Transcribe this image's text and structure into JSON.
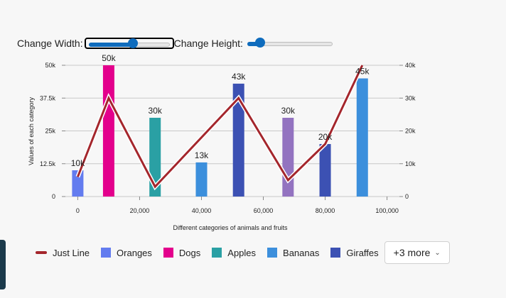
{
  "controls": {
    "width_label": "Change Width:",
    "height_label": "Change Height:",
    "width_slider_value": 0.55,
    "height_slider_value": 0.15
  },
  "chart_data": {
    "type": "bar",
    "xlabel": "Different categories of animals and fruits",
    "ylabel": "Values of each category",
    "x_ticks": [
      "0",
      "20,000",
      "40,000",
      "60,000",
      "80,000",
      "100,000"
    ],
    "x_range": [
      -4000,
      104000
    ],
    "y_ticks": [
      "0",
      "12.5k",
      "25k",
      "37.5k",
      "50k"
    ],
    "ylim": [
      0,
      50000
    ],
    "y2_ticks": [
      "0",
      "10k",
      "20k",
      "30k",
      "40k"
    ],
    "y2lim": [
      0,
      40000
    ],
    "grid": true,
    "bars": [
      {
        "name": "Oranges",
        "x": 0,
        "value": 10000,
        "label": "10k",
        "color": "#637cef"
      },
      {
        "name": "Dogs",
        "x": 10000,
        "value": 50000,
        "label": "50k",
        "color": "#e3008c"
      },
      {
        "name": "Apples",
        "x": 25000,
        "value": 30000,
        "label": "30k",
        "color": "#2aa0a4"
      },
      {
        "name": "Bananas",
        "x": 40000,
        "value": 13000,
        "label": "13k",
        "color": "#3c8fdc"
      },
      {
        "name": "Giraffes",
        "x": 52000,
        "value": 43000,
        "label": "43k",
        "color": "#3c51b3"
      },
      {
        "name": "",
        "x": 68000,
        "value": 30000,
        "label": "30k",
        "color": "#9373c0"
      },
      {
        "name": "",
        "x": 80000,
        "value": 20000,
        "label": "20k",
        "color": "#3c51b3"
      },
      {
        "name": "",
        "x": 92000,
        "value": 45000,
        "label": "45k",
        "color": "#3c8fdc"
      }
    ],
    "line": {
      "name": "Just Line",
      "color": "#a4262c",
      "points": [
        [
          0,
          6000
        ],
        [
          10000,
          30000
        ],
        [
          25000,
          3000
        ],
        [
          52000,
          30000
        ],
        [
          68000,
          5000
        ],
        [
          80000,
          16000
        ],
        [
          92000,
          40000
        ]
      ]
    }
  },
  "legend": {
    "items": [
      {
        "label": "Just Line",
        "color": "#a4262c",
        "kind": "line"
      },
      {
        "label": "Oranges",
        "color": "#637cef",
        "kind": "box"
      },
      {
        "label": "Dogs",
        "color": "#e3008c",
        "kind": "box"
      },
      {
        "label": "Apples",
        "color": "#2aa0a4",
        "kind": "box"
      },
      {
        "label": "Bananas",
        "color": "#3c8fdc",
        "kind": "box"
      },
      {
        "label": "Giraffes",
        "color": "#3c51b3",
        "kind": "box"
      }
    ],
    "more_label": "+3 more"
  }
}
